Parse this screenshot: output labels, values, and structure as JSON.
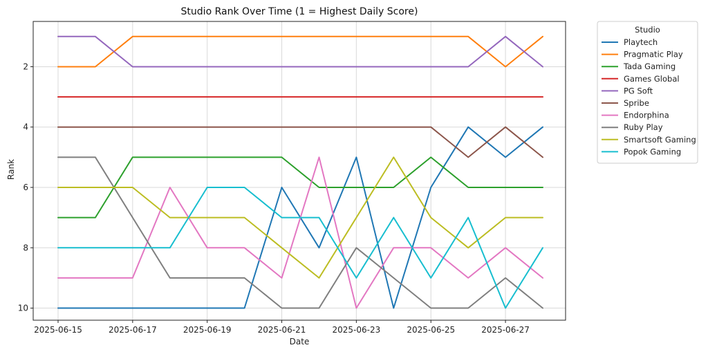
{
  "chart_data": {
    "type": "line",
    "title": "Studio Rank Over Time (1 = Highest Daily Score)",
    "xlabel": "Date",
    "ylabel": "Rank",
    "y_inverted": true,
    "ylim": [
      0.5,
      10.4
    ],
    "yticks": [
      2,
      4,
      6,
      8,
      10
    ],
    "grid": true,
    "x": [
      "2025-06-15",
      "2025-06-16",
      "2025-06-17",
      "2025-06-18",
      "2025-06-19",
      "2025-06-20",
      "2025-06-21",
      "2025-06-22",
      "2025-06-23",
      "2025-06-24",
      "2025-06-25",
      "2025-06-26",
      "2025-06-27",
      "2025-06-28"
    ],
    "xticks": [
      "2025-06-15",
      "2025-06-17",
      "2025-06-19",
      "2025-06-21",
      "2025-06-23",
      "2025-06-25",
      "2025-06-27"
    ],
    "legend": {
      "title": "Studio",
      "placement": "outside-right-top"
    },
    "series": [
      {
        "name": "Playtech",
        "color": "#1f77b4",
        "values": [
          10,
          10,
          10,
          10,
          10,
          10,
          6,
          8,
          5,
          10,
          6,
          4,
          5,
          4
        ]
      },
      {
        "name": "Pragmatic Play",
        "color": "#ff7f0e",
        "values": [
          2,
          2,
          1,
          1,
          1,
          1,
          1,
          1,
          1,
          1,
          1,
          1,
          2,
          1
        ]
      },
      {
        "name": "Tada Gaming",
        "color": "#2ca02c",
        "values": [
          7,
          7,
          5,
          5,
          5,
          5,
          5,
          6,
          6,
          6,
          5,
          6,
          6,
          6
        ]
      },
      {
        "name": "Games Global",
        "color": "#d62728",
        "values": [
          3,
          3,
          3,
          3,
          3,
          3,
          3,
          3,
          3,
          3,
          3,
          3,
          3,
          3
        ]
      },
      {
        "name": "PG Soft",
        "color": "#9467bd",
        "values": [
          1,
          1,
          2,
          2,
          2,
          2,
          2,
          2,
          2,
          2,
          2,
          2,
          1,
          2
        ]
      },
      {
        "name": "Spribe",
        "color": "#8c564b",
        "values": [
          4,
          4,
          4,
          4,
          4,
          4,
          4,
          4,
          4,
          4,
          4,
          5,
          4,
          5
        ]
      },
      {
        "name": "Endorphina",
        "color": "#e377c2",
        "values": [
          9,
          9,
          9,
          6,
          8,
          8,
          9,
          5,
          10,
          8,
          8,
          9,
          8,
          9
        ]
      },
      {
        "name": "Ruby Play",
        "color": "#7f7f7f",
        "values": [
          5,
          5,
          7,
          9,
          9,
          9,
          10,
          10,
          8,
          9,
          10,
          10,
          9,
          10
        ]
      },
      {
        "name": "Smartsoft Gaming",
        "color": "#bcbd22",
        "values": [
          6,
          6,
          6,
          7,
          7,
          7,
          8,
          9,
          7,
          5,
          7,
          8,
          7,
          7
        ]
      },
      {
        "name": "Popok Gaming",
        "color": "#17becf",
        "values": [
          8,
          8,
          8,
          8,
          6,
          6,
          7,
          7,
          9,
          7,
          9,
          7,
          10,
          8
        ]
      }
    ]
  }
}
